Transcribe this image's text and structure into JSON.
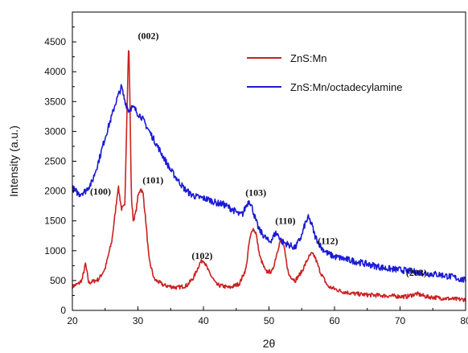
{
  "chart_data": {
    "type": "line",
    "xlabel": "2θ",
    "ylabel": "Intensity (a.u.)",
    "xlim": [
      20,
      80
    ],
    "ylim": [
      0,
      5000
    ],
    "xticks": [
      20,
      30,
      40,
      50,
      60,
      70,
      80
    ],
    "yticks": [
      0,
      500,
      1000,
      1500,
      2000,
      2500,
      3000,
      3500,
      4000,
      4500
    ],
    "grid": false,
    "legend_position": "top-right",
    "series": [
      {
        "name": "ZnS:Mn",
        "color": "#cc2020",
        "x": [
          20,
          21,
          21.5,
          22,
          22.5,
          23,
          24,
          25,
          26,
          26.5,
          27,
          27.5,
          28,
          28.3,
          28.6,
          28.8,
          29,
          29.3,
          29.7,
          30,
          30.4,
          30.8,
          31.2,
          31.7,
          32.5,
          34,
          36,
          37.5,
          38.5,
          39.5,
          40,
          40.8,
          42,
          44,
          45.5,
          46.5,
          47,
          47.5,
          48,
          48.6,
          49.5,
          50.5,
          51.3,
          51.8,
          52.3,
          53,
          54,
          55,
          56,
          56.5,
          57,
          57.8,
          59,
          61,
          63,
          65,
          67,
          69,
          71,
          72.5,
          74,
          76,
          78,
          80
        ],
        "y": [
          400,
          450,
          520,
          780,
          460,
          480,
          520,
          700,
          1150,
          1600,
          2080,
          1700,
          1750,
          3200,
          4550,
          3400,
          1900,
          1500,
          1650,
          1900,
          2050,
          1950,
          1500,
          850,
          520,
          420,
          380,
          420,
          550,
          800,
          850,
          650,
          430,
          380,
          450,
          700,
          1150,
          1380,
          1300,
          900,
          650,
          650,
          1000,
          1200,
          1050,
          600,
          500,
          650,
          880,
          950,
          900,
          650,
          400,
          320,
          280,
          260,
          250,
          240,
          230,
          280,
          230,
          210,
          190,
          180
        ]
      },
      {
        "name": "ZnS:Mn/octadecylamine",
        "color": "#1a1ad6",
        "x": [
          20,
          21,
          22,
          23,
          24,
          25,
          26,
          26.5,
          27,
          27.5,
          27.8,
          28.2,
          28.6,
          29,
          29.5,
          30,
          30.5,
          31,
          32,
          33,
          34,
          35,
          36,
          37,
          38,
          39,
          40,
          41,
          42,
          43,
          44,
          45,
          45.5,
          46,
          46.5,
          47,
          47.5,
          48,
          48.5,
          49,
          50,
          50.5,
          51,
          51.5,
          52,
          53,
          54,
          55,
          55.5,
          56,
          56.5,
          57,
          58,
          59,
          60,
          62,
          64,
          66,
          68,
          70,
          72,
          74,
          76,
          78,
          80
        ],
        "y": [
          2050,
          1950,
          2000,
          2150,
          2500,
          2900,
          3250,
          3450,
          3600,
          3750,
          3600,
          3450,
          3350,
          3400,
          3380,
          3300,
          3250,
          3150,
          2950,
          2750,
          2550,
          2350,
          2200,
          2050,
          1950,
          1900,
          1880,
          1850,
          1800,
          1780,
          1720,
          1650,
          1600,
          1620,
          1750,
          1850,
          1700,
          1500,
          1350,
          1280,
          1150,
          1200,
          1300,
          1250,
          1150,
          1100,
          1050,
          1250,
          1450,
          1550,
          1450,
          1250,
          1050,
          950,
          900,
          850,
          800,
          750,
          700,
          680,
          650,
          620,
          600,
          560,
          500
        ]
      }
    ],
    "annotations": [
      {
        "text": "(002)",
        "x": 31.6,
        "y": 4550
      },
      {
        "text": "(100)",
        "x": 24.3,
        "y": 1940
      },
      {
        "text": "(101)",
        "x": 32.3,
        "y": 2130
      },
      {
        "text": "(102)",
        "x": 39.8,
        "y": 860
      },
      {
        "text": "(103)",
        "x": 48.0,
        "y": 1920
      },
      {
        "text": "(110)",
        "x": 52.5,
        "y": 1450
      },
      {
        "text": "(112)",
        "x": 59.0,
        "y": 1110
      },
      {
        "text": "(203)",
        "x": 72.5,
        "y": 580
      }
    ]
  }
}
